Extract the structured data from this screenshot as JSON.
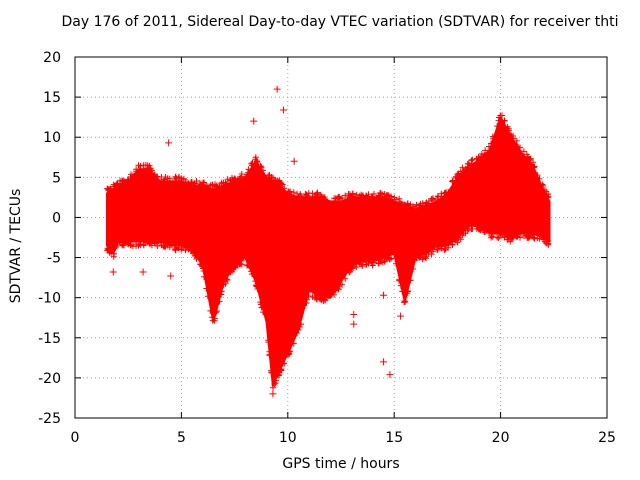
{
  "chart_data": {
    "type": "scatter",
    "title": "Day 176 of 2011, Sidereal Day-to-day VTEC variation (SDTVAR) for receiver thti",
    "xlabel": "GPS time / hours",
    "ylabel": "SDTVAR / TECUs",
    "xlim": [
      0,
      25
    ],
    "ylim": [
      -25,
      20
    ],
    "xticks": [
      0,
      5,
      10,
      15,
      20,
      25
    ],
    "yticks": [
      -25,
      -20,
      -15,
      -10,
      -5,
      0,
      5,
      10,
      15,
      20
    ],
    "grid": true,
    "marker": "+",
    "color": "#ff0000",
    "series": [
      {
        "name": "SDTVAR",
        "envelope": {
          "x": [
            1.5,
            1.8,
            2.0,
            2.5,
            3.0,
            3.5,
            4.0,
            4.5,
            5.0,
            5.5,
            6.0,
            6.5,
            7.0,
            7.5,
            8.0,
            8.5,
            9.0,
            9.3,
            9.6,
            10.0,
            10.5,
            11.0,
            11.5,
            12.0,
            12.5,
            13.0,
            13.5,
            14.0,
            14.5,
            15.0,
            15.5,
            16.0,
            16.5,
            17.0,
            17.5,
            18.0,
            18.5,
            19.0,
            19.5,
            20.0,
            20.5,
            21.0,
            21.5,
            22.0,
            22.3
          ],
          "upper": [
            3.0,
            3.5,
            4.0,
            4.5,
            6.0,
            6.0,
            4.5,
            4.5,
            4.5,
            4.0,
            4.0,
            3.5,
            4.0,
            4.5,
            5.0,
            7.0,
            5.0,
            4.5,
            4.0,
            3.0,
            2.5,
            2.5,
            2.5,
            2.0,
            2.0,
            2.5,
            2.5,
            2.5,
            2.5,
            2.0,
            1.5,
            1.0,
            1.5,
            2.0,
            3.0,
            5.0,
            6.5,
            7.0,
            8.5,
            12.5,
            10.0,
            8.0,
            6.5,
            3.5,
            2.0
          ],
          "lower": [
            -3.5,
            -4.5,
            -3.0,
            -3.0,
            -3.0,
            -3.0,
            -3.0,
            -3.5,
            -3.5,
            -4.0,
            -6.0,
            -13.0,
            -8.0,
            -6.0,
            -5.0,
            -8.0,
            -13.0,
            -21.0,
            -19.0,
            -17.0,
            -14.0,
            -9.0,
            -10.0,
            -10.0,
            -8.0,
            -6.0,
            -5.5,
            -5.5,
            -5.0,
            -4.5,
            -10.5,
            -5.0,
            -4.5,
            -3.5,
            -3.5,
            -2.5,
            -1.0,
            -1.0,
            -2.0,
            -2.0,
            -2.5,
            -2.0,
            -2.0,
            -2.5,
            -3.0
          ]
        },
        "outliers": [
          {
            "x": 4.4,
            "y": 9.3
          },
          {
            "x": 9.5,
            "y": 16.0
          },
          {
            "x": 9.8,
            "y": 13.4
          },
          {
            "x": 8.4,
            "y": 12.0
          },
          {
            "x": 10.3,
            "y": 7.0
          },
          {
            "x": 14.5,
            "y": -18.0
          },
          {
            "x": 14.8,
            "y": -19.6
          },
          {
            "x": 14.5,
            "y": -9.7
          },
          {
            "x": 13.1,
            "y": -12.1
          },
          {
            "x": 13.1,
            "y": -13.3
          },
          {
            "x": 4.5,
            "y": -7.3
          },
          {
            "x": 1.8,
            "y": -6.8
          },
          {
            "x": 3.2,
            "y": -6.8
          },
          {
            "x": 15.3,
            "y": -12.3
          },
          {
            "x": 9.3,
            "y": -22.0
          }
        ]
      }
    ]
  }
}
